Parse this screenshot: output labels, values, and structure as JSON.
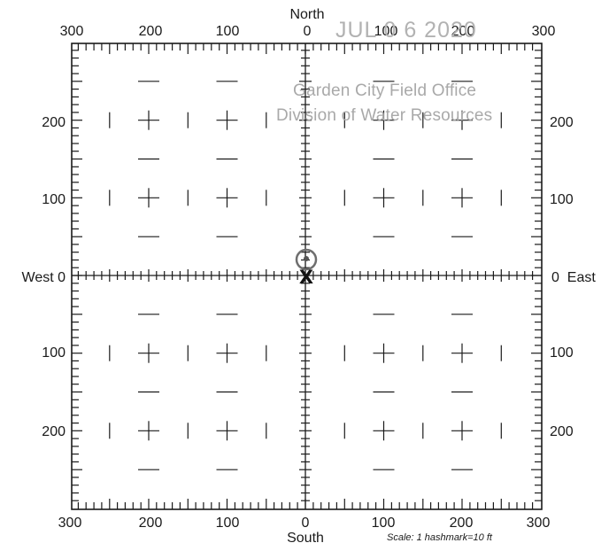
{
  "directions": {
    "north": "North",
    "south": "South",
    "west": "West",
    "east": "East"
  },
  "axis": {
    "top_labels": [
      "300",
      "200",
      "100",
      "0",
      "100",
      "200",
      "300"
    ],
    "bottom_labels": [
      "300",
      "200",
      "100",
      "0",
      "100",
      "200",
      "300"
    ],
    "left_labels": [
      "200",
      "100",
      "0",
      "100",
      "200"
    ],
    "right_labels": [
      "200",
      "100",
      "0",
      "100",
      "200"
    ],
    "west_zero_label": "West 0",
    "east_zero_label": "0  East"
  },
  "scale_note": "Scale:  1 hashmark=10 ft",
  "stamp": {
    "date": "JUL 0 6 2020",
    "line1": "Garden City Field Office",
    "line2": "Division of Water Resources"
  },
  "colors": {
    "ink": "#1a1a1a",
    "stamp": "#a9a9a9"
  },
  "marker": {
    "label": "X",
    "symbol": "circled-point"
  }
}
